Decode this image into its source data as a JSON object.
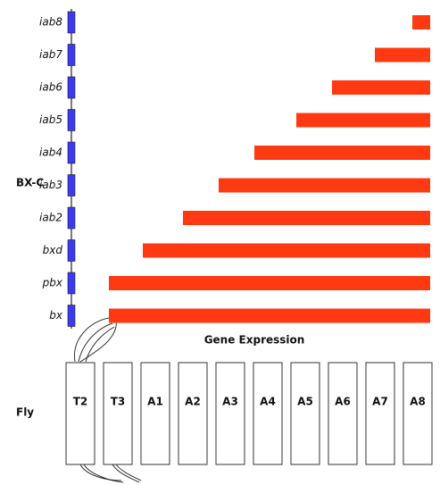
{
  "side_labels": {
    "complex": "BX-C",
    "organism": "Fly"
  },
  "genes": [
    "iab8",
    "iab7",
    "iab6",
    "iab5",
    "iab4",
    "iab3",
    "iab2",
    "bxd",
    "pbx",
    "bx"
  ],
  "caption": "Gene Expression",
  "segments": [
    "T2",
    "T3",
    "A1",
    "A2",
    "A3",
    "A4",
    "A5",
    "A6",
    "A7",
    "A8"
  ]
}
